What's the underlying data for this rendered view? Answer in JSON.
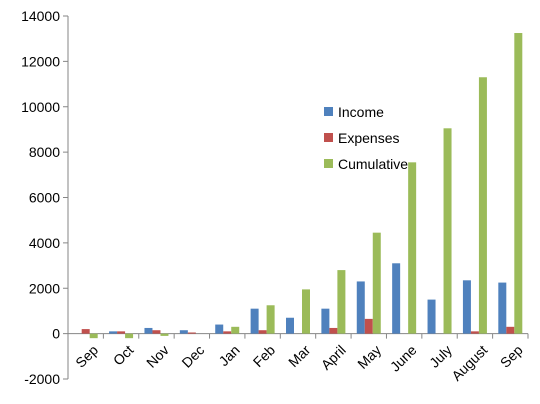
{
  "chart_data": {
    "type": "bar",
    "categories": [
      "Sep",
      "Oct",
      "Nov",
      "Dec",
      "Jan",
      "Feb",
      "Mar",
      "April",
      "May",
      "June",
      "July",
      "August",
      "Sep"
    ],
    "series": [
      {
        "name": "Income",
        "color": "#4F81BD",
        "values": [
          0,
          100,
          250,
          150,
          400,
          1100,
          700,
          1100,
          2300,
          3100,
          1500,
          2350,
          2250
        ]
      },
      {
        "name": "Expenses",
        "color": "#C0504D",
        "values": [
          200,
          100,
          150,
          50,
          100,
          150,
          0,
          250,
          650,
          0,
          0,
          100,
          300
        ]
      },
      {
        "name": "Cumulative",
        "color": "#9BBB59",
        "values": [
          -200,
          -200,
          -100,
          0,
          300,
          1250,
          1950,
          2800,
          4450,
          7550,
          9050,
          11300,
          13250
        ]
      }
    ],
    "ylim": [
      -2000,
      14000
    ],
    "yticks": [
      -2000,
      0,
      2000,
      4000,
      6000,
      8000,
      10000,
      12000,
      14000
    ],
    "grid": false,
    "legend_position": "center-right"
  }
}
